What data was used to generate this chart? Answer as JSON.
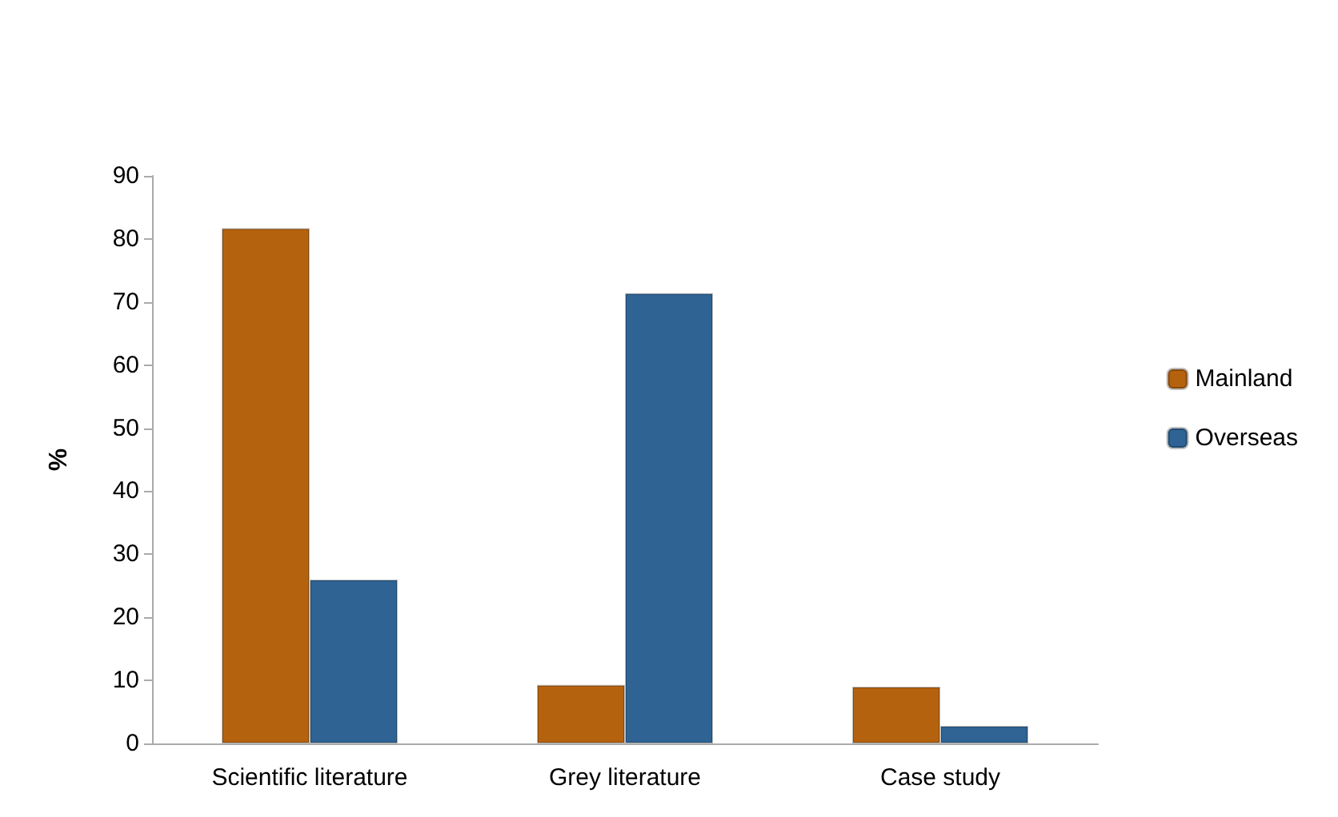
{
  "chart_data": {
    "type": "bar",
    "ylabel": "%",
    "categories": [
      "Scientific literature",
      "Grey literature",
      "Case study"
    ],
    "series": [
      {
        "name": "Mainland",
        "color": "#b5620f",
        "values": [
          81.7,
          9.3,
          9.0
        ]
      },
      {
        "name": "Overseas",
        "color": "#2e6394",
        "values": [
          26.0,
          71.4,
          2.8
        ]
      }
    ],
    "ylim": [
      0,
      90
    ],
    "yticks": [
      0,
      10,
      20,
      30,
      40,
      50,
      60,
      70,
      80,
      90
    ],
    "grid": false,
    "legend": "right"
  }
}
